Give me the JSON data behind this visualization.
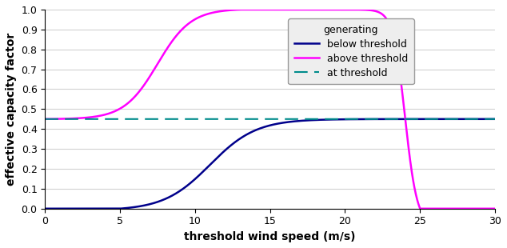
{
  "title": "",
  "xlabel": "threshold wind speed (m/s)",
  "ylabel": "effective capacity factor",
  "xlim": [
    0,
    30
  ],
  "ylim": [
    0,
    1.0
  ],
  "xticks": [
    0,
    5,
    10,
    15,
    20,
    25,
    30
  ],
  "yticks": [
    0.0,
    0.1,
    0.2,
    0.3,
    0.4,
    0.5,
    0.6,
    0.7,
    0.8,
    0.9,
    1.0
  ],
  "legend_title": "generating",
  "legend_labels": [
    "below threshold",
    "above threshold",
    "at threshold"
  ],
  "colors": {
    "below": "#00008B",
    "above": "#FF00FF",
    "at": "#008B8B"
  },
  "threshold_value": 0.45,
  "cut_in": 5.0,
  "rated_speed": 13.0,
  "cut_out": 25.0,
  "background_color": "#ffffff",
  "grid_color": "#d0d0d0"
}
